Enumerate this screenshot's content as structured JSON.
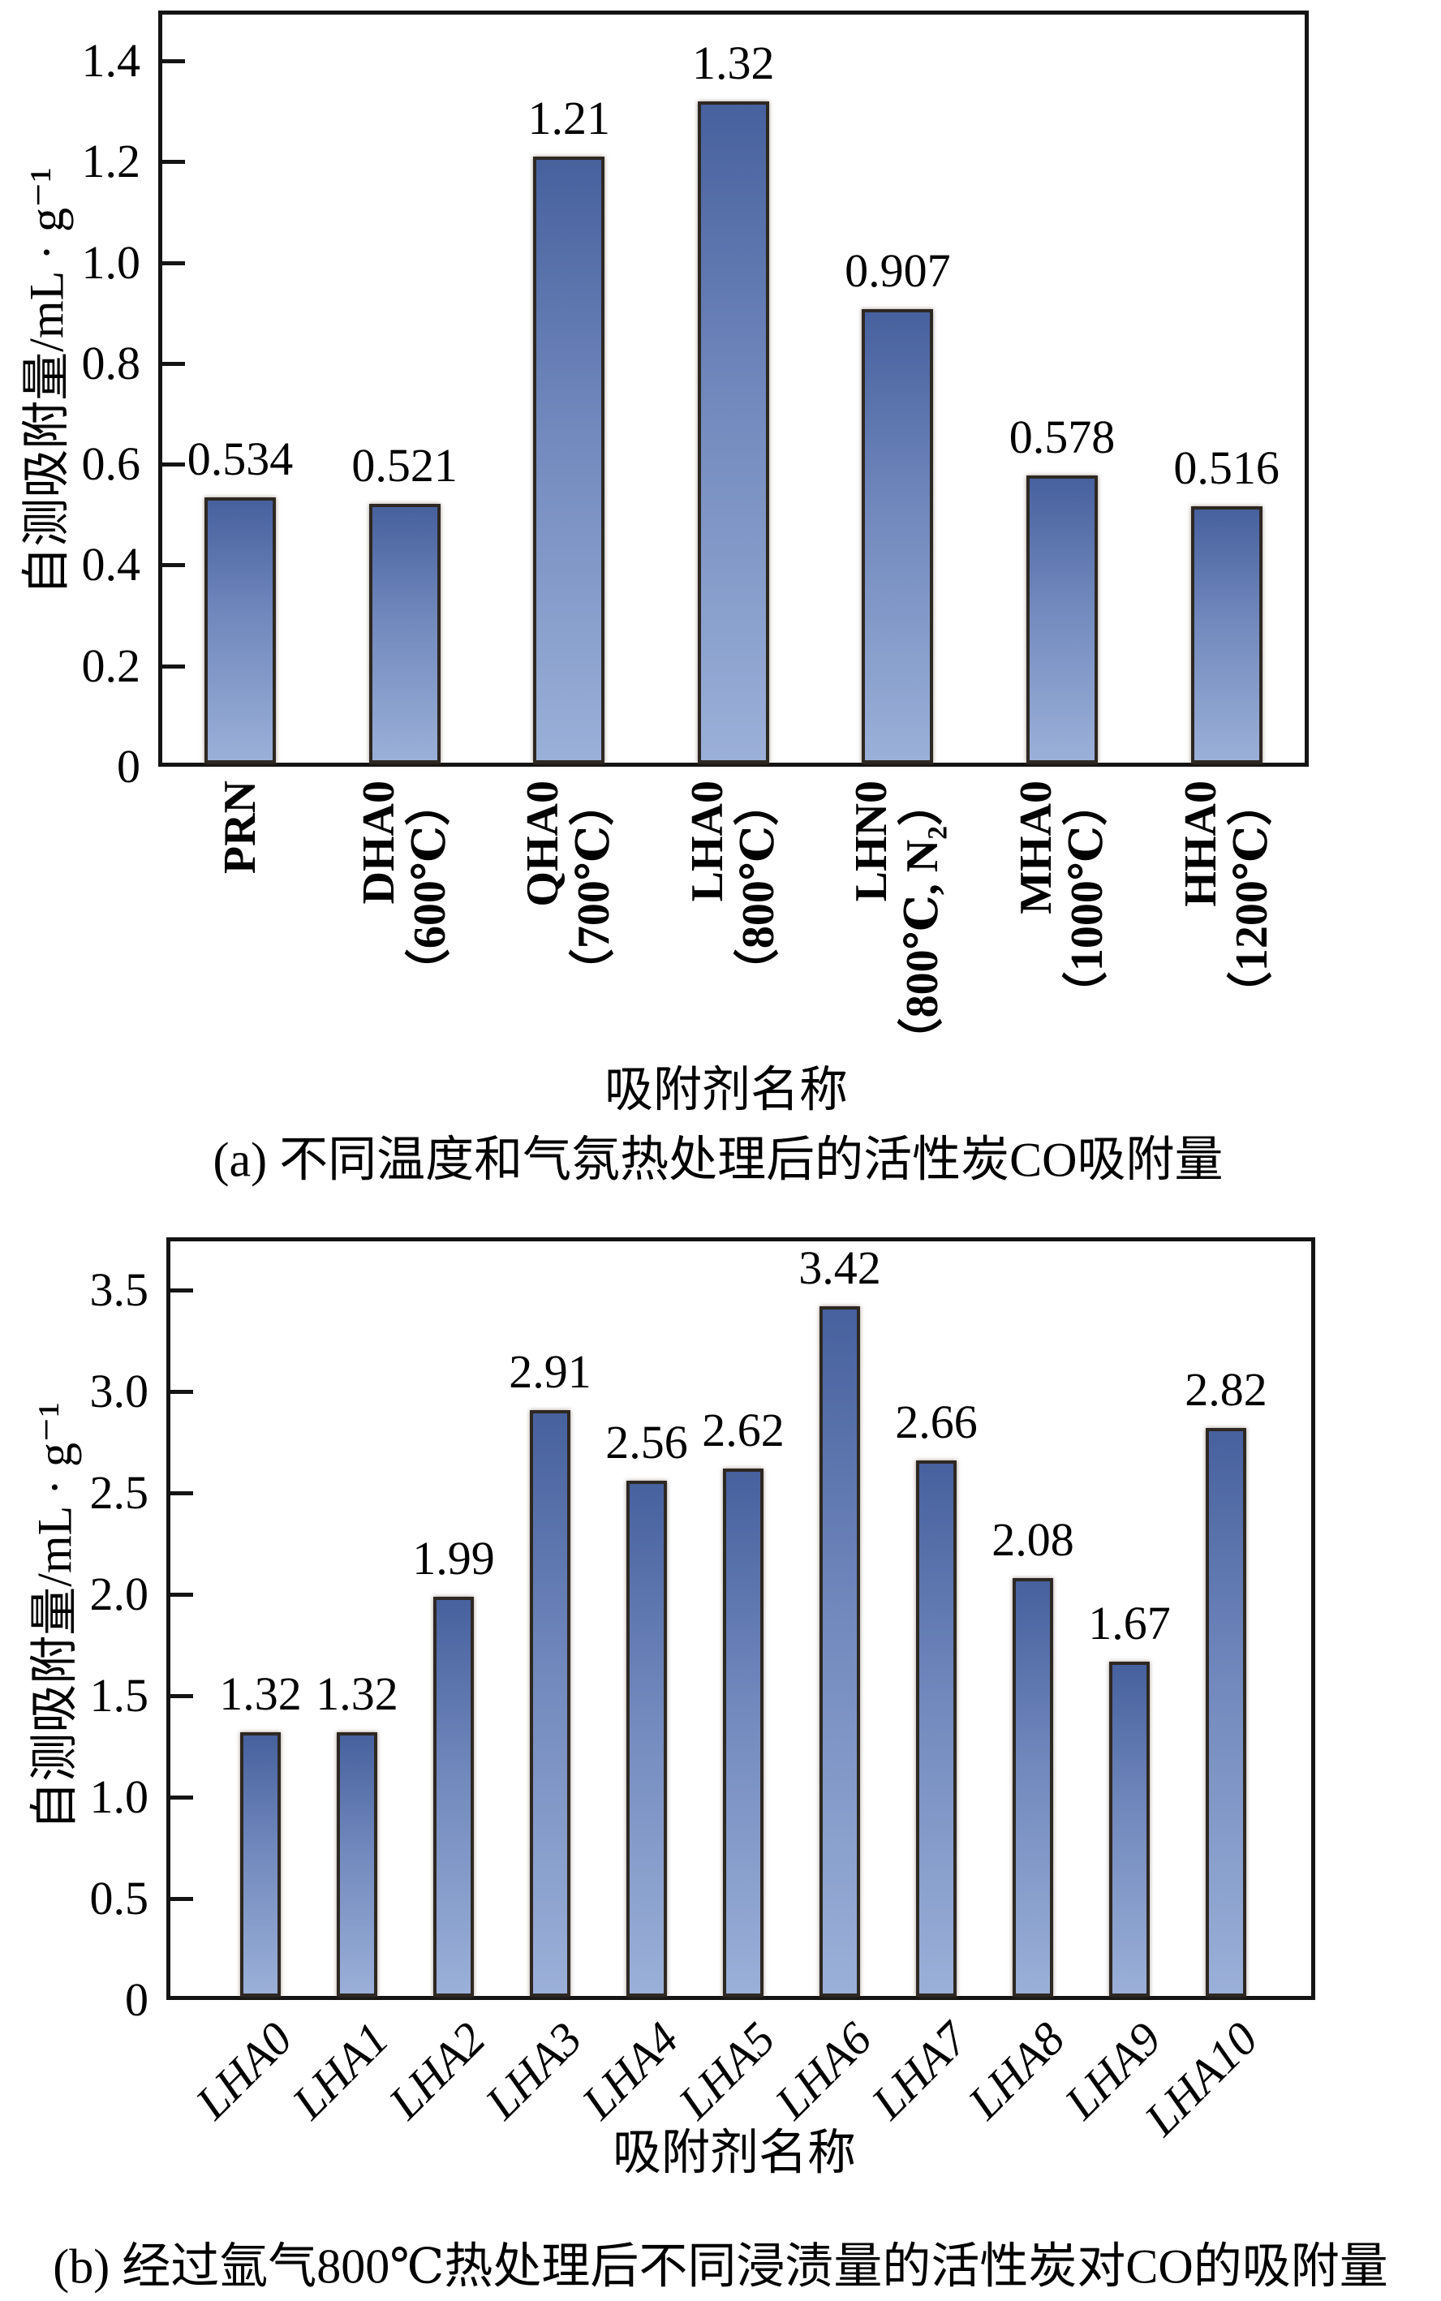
{
  "colors": {
    "bar_gradient_top": "#47619e",
    "bar_gradient_mid": "#7189bd",
    "bar_gradient_bottom": "#9bb0d8",
    "bar_border": "#2e2823",
    "axis": "#141414",
    "text": "#000000",
    "background": "#ffffff"
  },
  "chart_data": [
    {
      "type": "bar",
      "panel": "(a)",
      "title": "(a) 不同温度和气氛热处理后的活性炭CO吸附量",
      "xlabel": "吸附剂名称",
      "ylabel": "自测吸附量/mL · g⁻¹",
      "categories": [
        "PRN",
        "DHA0\n（600℃）",
        "QHA0\n（700℃）",
        "LHA0\n（800℃）",
        "LHN0\n（800℃, N₂）",
        "MHA0\n（1000℃）",
        "HHA0\n（1200℃）"
      ],
      "values": [
        0.534,
        0.521,
        1.21,
        1.32,
        0.907,
        0.578,
        0.516
      ],
      "value_labels": [
        "0.534",
        "0.521",
        "1.21",
        "1.32",
        "0.907",
        "0.578",
        "0.516"
      ],
      "ylim": [
        0,
        1.5
      ],
      "yticks": [
        {
          "v": 0,
          "label": "0"
        },
        {
          "v": 0.2,
          "label": "0.2"
        },
        {
          "v": 0.4,
          "label": "0.4"
        },
        {
          "v": 0.6,
          "label": "0.6"
        },
        {
          "v": 0.8,
          "label": "0.8"
        },
        {
          "v": 1.0,
          "label": "1.0"
        },
        {
          "v": 1.2,
          "label": "1.2"
        },
        {
          "v": 1.4,
          "label": "1.4"
        }
      ],
      "grid": false,
      "legend": null,
      "bar_orientation": "vertical",
      "category_rotation_deg": 90
    },
    {
      "type": "bar",
      "panel": "(b)",
      "title": "(b) 经过氩气800℃热处理后不同浸渍量的活性炭对CO的吸附量",
      "xlabel": "吸附剂名称",
      "ylabel": "自测吸附量/mL · g⁻¹",
      "categories": [
        "LHA0",
        "LHA1",
        "LHA2",
        "LHA3",
        "LHA4",
        "LHA5",
        "LHA6",
        "LHA7",
        "LHA8",
        "LHA9",
        "LHA10"
      ],
      "values": [
        1.32,
        1.32,
        1.99,
        2.91,
        2.56,
        2.62,
        3.42,
        2.66,
        2.08,
        1.67,
        2.82
      ],
      "value_labels": [
        "1.32",
        "1.32",
        "1.99",
        "2.91",
        "2.56",
        "2.62",
        "3.42",
        "2.66",
        "2.08",
        "1.67",
        "2.82"
      ],
      "ylim": [
        0,
        3.76
      ],
      "yticks": [
        {
          "v": 0,
          "label": "0"
        },
        {
          "v": 0.5,
          "label": "0.5"
        },
        {
          "v": 1.0,
          "label": "1.0"
        },
        {
          "v": 1.5,
          "label": "1.5"
        },
        {
          "v": 2.0,
          "label": "2.0"
        },
        {
          "v": 2.5,
          "label": "2.5"
        },
        {
          "v": 3.0,
          "label": "3.0"
        },
        {
          "v": 3.5,
          "label": "3.5"
        }
      ],
      "grid": false,
      "legend": null,
      "bar_orientation": "vertical",
      "category_rotation_deg": 45
    }
  ]
}
